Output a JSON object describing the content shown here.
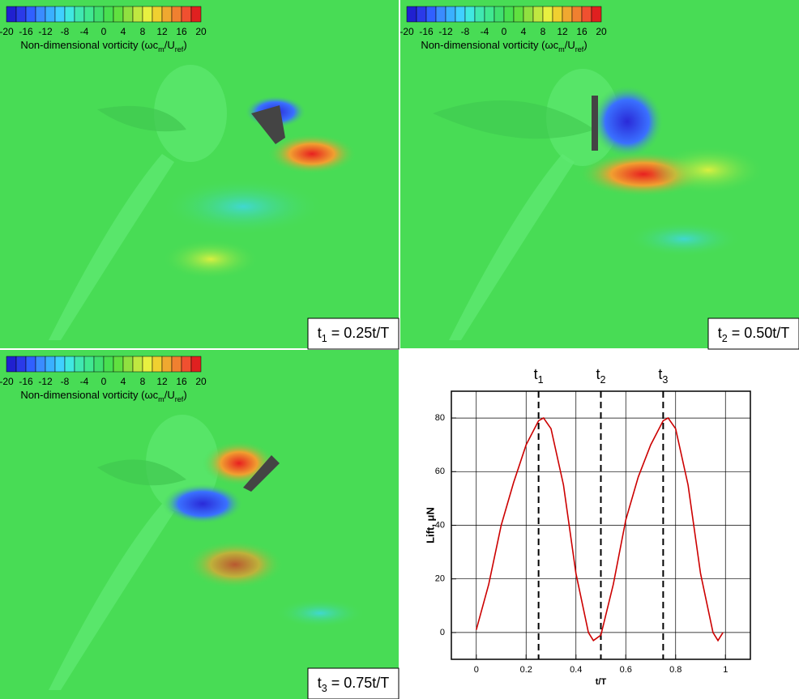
{
  "colorbar": {
    "ticks": [
      -20,
      -16,
      -12,
      -8,
      -4,
      0,
      4,
      8,
      12,
      16,
      20
    ],
    "colors": [
      "#2020d0",
      "#2a3ae8",
      "#3060ff",
      "#3a8cff",
      "#3ab0ff",
      "#40d0ff",
      "#40e8e0",
      "#40e8b0",
      "#40e890",
      "#40e070",
      "#48e050",
      "#60e040",
      "#90e040",
      "#c0e840",
      "#e8f040",
      "#f0d030",
      "#f0a830",
      "#f08030",
      "#f05030",
      "#e02020"
    ],
    "label": [
      "Non-dimensional vorticity (ωc",
      "m",
      "/U",
      "ref",
      ")"
    ]
  },
  "panels": [
    {
      "symbol": "t",
      "sub": "1",
      "text": " = 0.25t/T"
    },
    {
      "symbol": "t",
      "sub": "2",
      "text": " = 0.50t/T"
    },
    {
      "symbol": "t",
      "sub": "3",
      "text": " = 0.75t/T"
    }
  ],
  "chart_data": {
    "type": "line",
    "xlabel": "t/T",
    "ylabel": "Lift, μN",
    "xlim": [
      -0.1,
      1.1
    ],
    "ylim": [
      -10,
      90
    ],
    "xticks": [
      0,
      0.2,
      0.4,
      0.6,
      0.8,
      1
    ],
    "yticks": [
      0,
      20,
      40,
      60,
      80
    ],
    "grid": true,
    "x": [
      0,
      0.05,
      0.1,
      0.15,
      0.2,
      0.25,
      0.27,
      0.3,
      0.35,
      0.4,
      0.45,
      0.47,
      0.5,
      0.55,
      0.6,
      0.65,
      0.7,
      0.75,
      0.77,
      0.8,
      0.85,
      0.9,
      0.95,
      0.97,
      0.99
    ],
    "series": [
      {
        "color": "#cc0000",
        "values": [
          1,
          18,
          40,
          56,
          70,
          79,
          80,
          76,
          55,
          22,
          0,
          -3,
          -1,
          18,
          42,
          58,
          70,
          79,
          80,
          76,
          55,
          22,
          0,
          -3,
          0
        ]
      }
    ],
    "annotations": [
      {
        "x": 0.25,
        "label": "t",
        "sub": "1"
      },
      {
        "x": 0.5,
        "label": "t",
        "sub": "2"
      },
      {
        "x": 0.75,
        "label": "t",
        "sub": "3"
      }
    ]
  }
}
